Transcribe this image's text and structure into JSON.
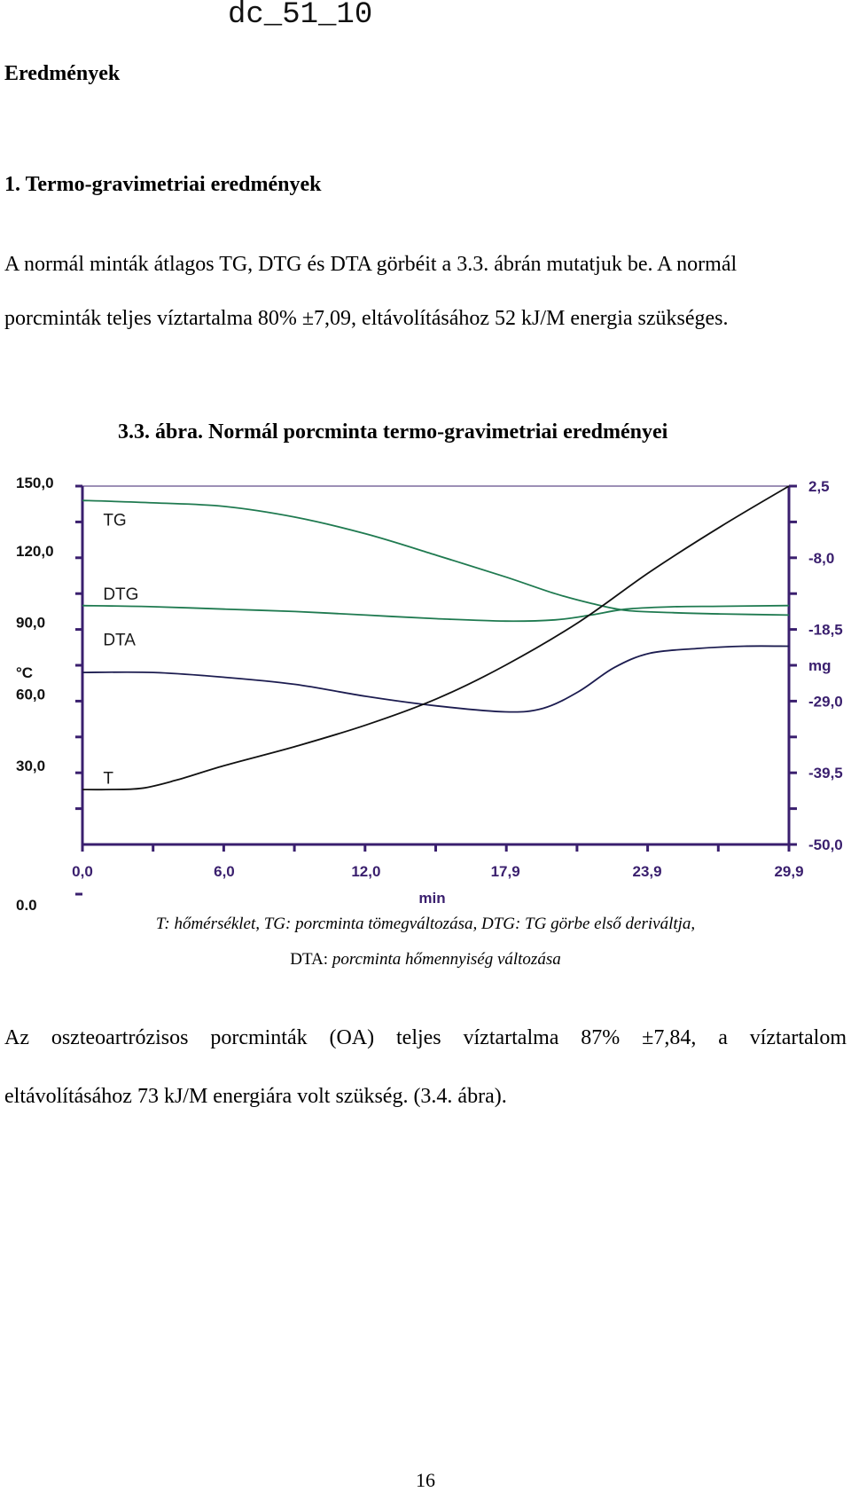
{
  "header": {
    "doc_id": "dc_51_10"
  },
  "heading": "Eredmények",
  "section_title": "1. Termo-gravimetriai eredmények",
  "paragraph1_line1": "A normál minták átlagos TG, DTG és DTA görbéit a 3.3. ábrán mutatjuk be. A normál",
  "paragraph1_line2": "porcminták teljes víztartalma 80% ±7,09, eltávolításához 52 kJ/M energia szükséges.",
  "figure_title": "3.3. ábra. Normál porcminta termo-gravimetriai eredményei",
  "caption_line1": "T: hőmérséklet, TG: porcminta tömegváltozása, DTG: TG görbe első deriváltja,",
  "caption_line2_prefix": "DTA:",
  "caption_line2_rest": " porcminta hőmennyiség változása",
  "paragraph2_line1": "Az oszteoartrózisos porcminták (OA) teljes víztartalma 87% ±7,84, a víztartalom",
  "paragraph2_line2": "eltávolításához 73 kJ/M energiára volt szükség. (3.4. ábra).",
  "page_number": "16",
  "chart_data": {
    "type": "line",
    "title": "",
    "xlabel": "min",
    "ylabel_left": "°C",
    "ylabel_right": "mg",
    "x_ticks": [
      "0,0",
      "6,0",
      "12,0",
      "17,9",
      "23,9",
      "29,9"
    ],
    "x_range": [
      0,
      29.9
    ],
    "y_left_ticks": [
      "0,0",
      "30,0",
      "60,0",
      "90,0",
      "120,0",
      "150,0"
    ],
    "y_left_range": [
      0,
      150
    ],
    "y_right_ticks": [
      "2,5",
      "-8,0",
      "-18,5",
      "-29,0",
      "-39,5",
      "-50,0"
    ],
    "y_right_range": [
      -50,
      2.5
    ],
    "grid": false,
    "colors": {
      "axis": "#3a1f6e",
      "green": "#1f7a50",
      "dark": "#1c1c50",
      "black": "#111111"
    },
    "series": [
      {
        "name": "TG",
        "axis": "left",
        "color": "green",
        "x": [
          0,
          3,
          6,
          9,
          12,
          15,
          17.9,
          20,
          21.5,
          23,
          25,
          27,
          29.9
        ],
        "y": [
          144,
          143,
          141.5,
          137,
          130,
          121,
          112,
          105,
          101,
          98,
          97,
          96.5,
          96
        ]
      },
      {
        "name": "DTG",
        "axis": "left",
        "color": "green",
        "x": [
          0,
          3,
          6,
          9,
          12,
          15,
          17.9,
          20,
          21.5,
          23,
          25,
          27,
          29.9
        ],
        "y": [
          100,
          99.5,
          98.5,
          97.5,
          96,
          94.5,
          93.5,
          94,
          96,
          98.5,
          99.5,
          99.7,
          100
        ]
      },
      {
        "name": "DTA",
        "axis": "left",
        "color": "dark",
        "x": [
          0,
          3,
          6,
          9,
          12,
          15,
          17.9,
          19.5,
          21,
          22.5,
          24,
          26,
          28,
          29.9
        ],
        "y": [
          72,
          72,
          70,
          67,
          62,
          58,
          55.5,
          57,
          64,
          74,
          80,
          82,
          83,
          83
        ]
      },
      {
        "name": "T",
        "axis": "left",
        "color": "black",
        "x": [
          0,
          1,
          2.5,
          4,
          6,
          9,
          12,
          15,
          17.9,
          21,
          24,
          27,
          29.9
        ],
        "y": [
          23,
          23,
          23.5,
          27,
          33,
          41,
          50,
          61,
          75,
          93,
          114,
          133,
          150
        ]
      }
    ],
    "curve_labels": [
      {
        "text": "TG",
        "x": 0.5,
        "y": 136
      },
      {
        "text": "DTG",
        "x": 0.5,
        "y": 105
      },
      {
        "text": "DTA",
        "x": 0.5,
        "y": 86
      },
      {
        "text": "T",
        "x": 0.5,
        "y": 28
      }
    ]
  }
}
